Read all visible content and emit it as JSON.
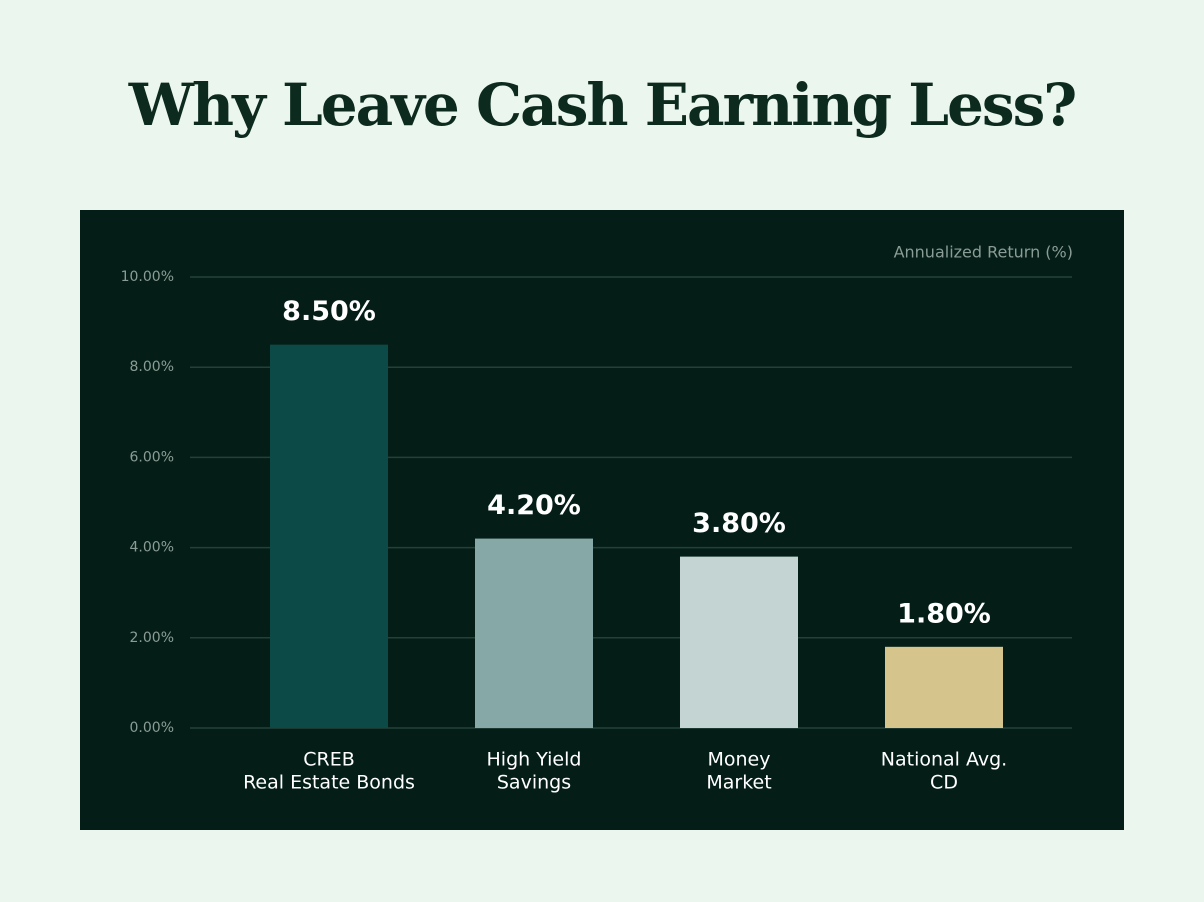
{
  "chart_data": {
    "type": "bar",
    "title": "Why Leave Cash Earning Less?",
    "y_axis_label": "Annualized Return (%)",
    "categories": [
      [
        "CREB",
        "Real Estate Bonds"
      ],
      [
        "High Yield",
        "Savings"
      ],
      [
        "Money",
        "Market"
      ],
      [
        "National Avg.",
        "CD"
      ]
    ],
    "values": [
      8.5,
      4.2,
      3.8,
      1.8
    ],
    "value_labels": [
      "8.50%",
      "4.20%",
      "3.80%",
      "1.80%"
    ],
    "colors": [
      "#0b4a47",
      "#86a9a7",
      "#c3d4d3",
      "#d5c48c"
    ],
    "ylim": [
      0,
      10
    ],
    "yticks": [
      {
        "value": 0,
        "label": "0.00%"
      },
      {
        "value": 2,
        "label": "2.00%"
      },
      {
        "value": 4,
        "label": "4.00%"
      },
      {
        "value": 6,
        "label": "6.00%"
      },
      {
        "value": 8,
        "label": "8.00%"
      },
      {
        "value": 10,
        "label": "10.00%"
      }
    ],
    "grid": true
  }
}
